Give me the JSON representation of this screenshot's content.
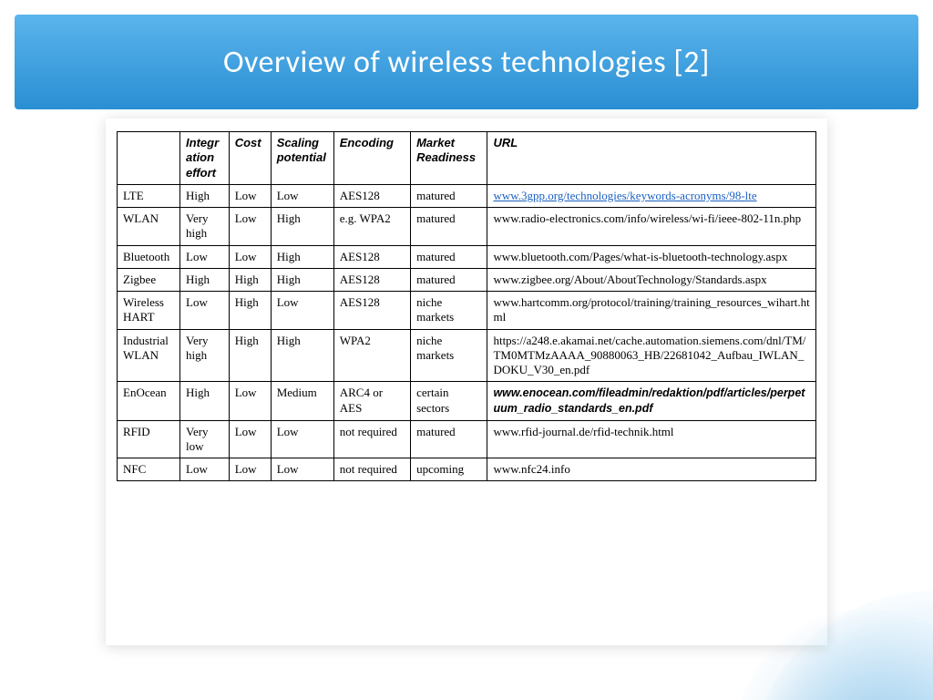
{
  "title": "Overview of wireless technologies [2]",
  "colors": {
    "banner_gradient_top": "#5bb4ec",
    "banner_gradient_bottom": "#2a8fd3",
    "title_text": "#ffffff",
    "link_color": "#1a5fc2",
    "border_color": "#000000",
    "background": "#ffffff"
  },
  "table": {
    "column_widths_pct": [
      9,
      7,
      6,
      9,
      11,
      11,
      47
    ],
    "headers": [
      "",
      "Integration effort",
      "Cost",
      "Scaling potential",
      "Encoding",
      "Market Readiness",
      "URL"
    ],
    "rows": [
      {
        "cells": [
          "LTE",
          "High",
          "Low",
          "Low",
          "AES128",
          "matured",
          "www.3gpp.org/technologies/keywords-acronyms/98-lte"
        ],
        "url_style": "link"
      },
      {
        "cells": [
          "WLAN",
          "Very high",
          "Low",
          "High",
          "e.g. WPA2",
          "matured",
          "www.radio-electronics.com/info/wireless/wi-fi/ieee-802-11n.php"
        ],
        "url_style": "plain"
      },
      {
        "cells": [
          "Bluetooth",
          "Low",
          "Low",
          "High",
          "AES128",
          "matured",
          "www.bluetooth.com/Pages/what-is-bluetooth-technology.aspx"
        ],
        "url_style": "plain"
      },
      {
        "cells": [
          "Zigbee",
          "High",
          "High",
          "High",
          "AES128",
          "matured",
          "www.zigbee.org/About/AboutTechnology/Standards.aspx"
        ],
        "url_style": "plain"
      },
      {
        "cells": [
          "Wireless HART",
          "Low",
          "High",
          "Low",
          "AES128",
          "niche markets",
          "www.hartcomm.org/protocol/training/training_resources_wihart.html"
        ],
        "url_style": "plain"
      },
      {
        "cells": [
          "Industrial WLAN",
          "Very high",
          "High",
          "High",
          "WPA2",
          "niche markets",
          "https://a248.e.akamai.net/cache.automation.siemens.com/dnl/TM/TM0MTMzAAAA_90880063_HB/22681042_Aufbau_IWLAN_DOKU_V30_en.pdf"
        ],
        "url_style": "plain"
      },
      {
        "cells": [
          "EnOcean",
          "High",
          "Low",
          "Medium",
          "ARC4 or AES",
          "certain sectors",
          "www.enocean.com/fileadmin/redaktion/pdf/articles/perpetuum_radio_standards_en.pdf"
        ],
        "url_style": "bold"
      },
      {
        "cells": [
          "RFID",
          "Very low",
          "Low",
          "Low",
          "not required",
          "matured",
          "www.rfid-journal.de/rfid-technik.html"
        ],
        "url_style": "plain"
      },
      {
        "cells": [
          "NFC",
          "Low",
          "Low",
          "Low",
          "not required",
          "upcoming",
          "www.nfc24.info"
        ],
        "url_style": "plain"
      }
    ]
  }
}
